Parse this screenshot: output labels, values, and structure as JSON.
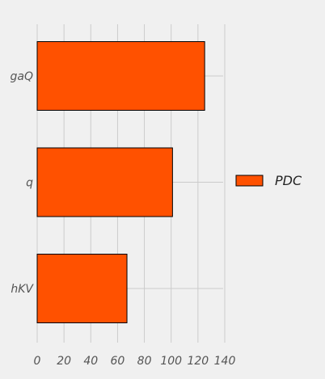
{
  "chart_data": {
    "type": "bar",
    "orientation": "horizontal",
    "categories": [
      "gaQ",
      "q",
      "hKV"
    ],
    "series": [
      {
        "name": "PDC",
        "values": [
          125,
          101,
          67
        ],
        "color": "#ff5100"
      }
    ],
    "xlim": [
      0,
      140
    ],
    "xticks": [
      0,
      20,
      40,
      60,
      80,
      100,
      120,
      140
    ],
    "grid": true,
    "legend_position": "right",
    "background": "#f0f0f0",
    "grid_color": "#cbcbcb",
    "bar_edge_color": "#000000"
  }
}
